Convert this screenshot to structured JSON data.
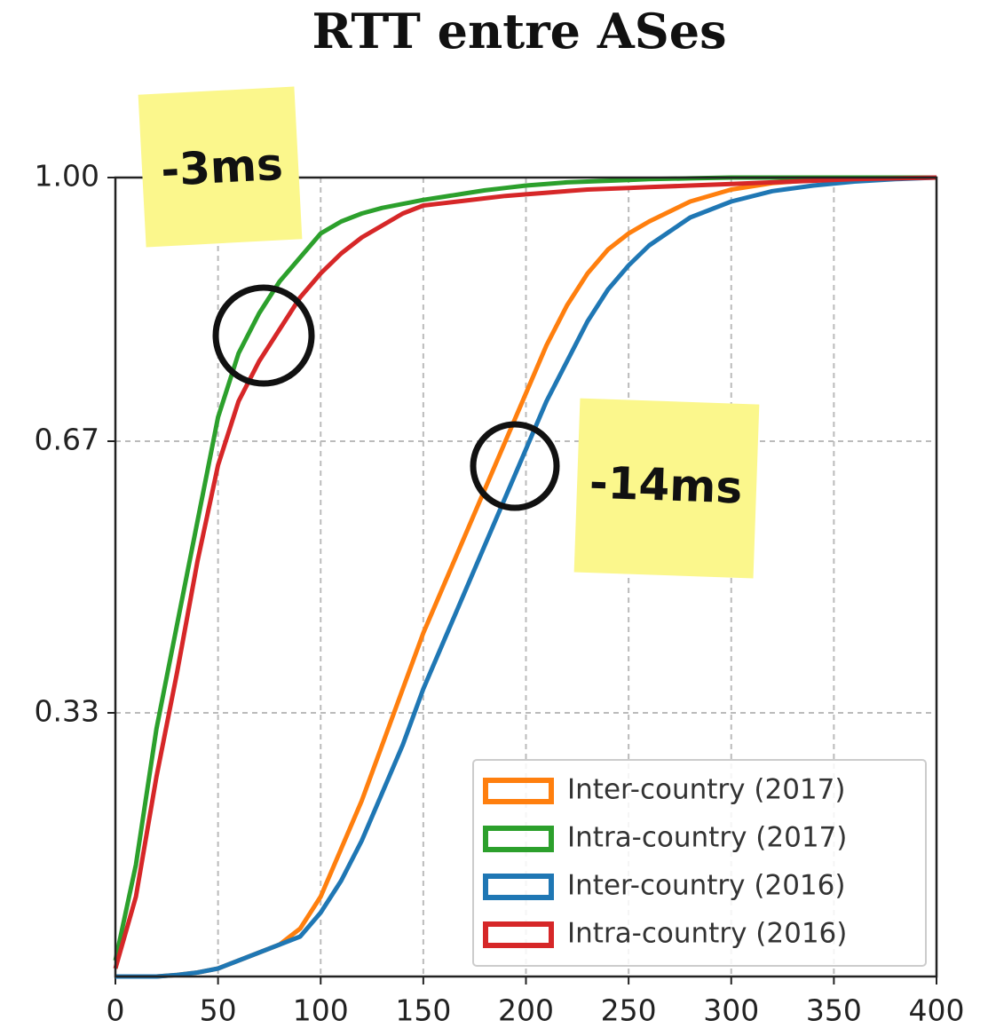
{
  "chart_data": {
    "type": "line",
    "title": "RTT entre ASes",
    "x": [
      0,
      10,
      20,
      30,
      40,
      50,
      60,
      70,
      80,
      90,
      100,
      110,
      120,
      130,
      140,
      150,
      160,
      170,
      180,
      190,
      200,
      210,
      220,
      230,
      240,
      250,
      260,
      280,
      300,
      320,
      340,
      360,
      380,
      400
    ],
    "series": [
      {
        "name": "Inter-country (2017)",
        "color": "#ff7f0e",
        "values": [
          0,
          0,
          0,
          0.002,
          0.005,
          0.01,
          0.02,
          0.03,
          0.04,
          0.06,
          0.1,
          0.16,
          0.22,
          0.29,
          0.36,
          0.43,
          0.49,
          0.55,
          0.61,
          0.67,
          0.73,
          0.79,
          0.84,
          0.88,
          0.91,
          0.93,
          0.945,
          0.97,
          0.985,
          0.993,
          0.997,
          1,
          1,
          1
        ]
      },
      {
        "name": "Intra-country (2017)",
        "color": "#2ca02c",
        "values": [
          0.02,
          0.14,
          0.31,
          0.44,
          0.57,
          0.7,
          0.78,
          0.83,
          0.87,
          0.9,
          0.93,
          0.945,
          0.955,
          0.962,
          0.967,
          0.972,
          0.976,
          0.98,
          0.984,
          0.987,
          0.99,
          0.992,
          0.994,
          0.995,
          0.996,
          0.997,
          0.998,
          0.999,
          1,
          1,
          1,
          1,
          1,
          1
        ]
      },
      {
        "name": "Inter-country (2016)",
        "color": "#1f77b4",
        "values": [
          0,
          0,
          0,
          0.002,
          0.005,
          0.01,
          0.02,
          0.03,
          0.04,
          0.05,
          0.08,
          0.12,
          0.17,
          0.23,
          0.29,
          0.36,
          0.42,
          0.48,
          0.54,
          0.6,
          0.66,
          0.72,
          0.77,
          0.82,
          0.86,
          0.89,
          0.915,
          0.95,
          0.97,
          0.983,
          0.99,
          0.995,
          0.998,
          1
        ]
      },
      {
        "name": "Intra-country (2016)",
        "color": "#d62728",
        "values": [
          0.01,
          0.1,
          0.25,
          0.38,
          0.52,
          0.64,
          0.72,
          0.77,
          0.81,
          0.85,
          0.88,
          0.905,
          0.925,
          0.94,
          0.955,
          0.965,
          0.968,
          0.971,
          0.974,
          0.977,
          0.979,
          0.981,
          0.983,
          0.985,
          0.986,
          0.987,
          0.988,
          0.99,
          0.992,
          0.994,
          0.996,
          0.998,
          0.999,
          1
        ]
      }
    ],
    "xlim": [
      0,
      400
    ],
    "xticks": [
      0,
      50,
      100,
      150,
      200,
      250,
      300,
      350,
      400
    ],
    "ylim": [
      0,
      1
    ],
    "yticks": [
      {
        "value": 1,
        "label": "1.00"
      },
      0.67,
      0.33
    ],
    "grid": true,
    "legend": "lower right",
    "annotations": [
      "-3ms",
      "-14ms"
    ]
  }
}
